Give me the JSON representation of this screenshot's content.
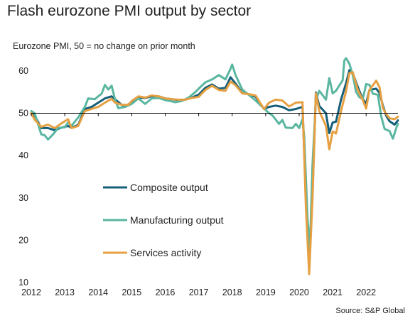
{
  "title": "Flash eurozone PMI output by sector",
  "subtitle": "Eurozone PMI, 50 = no change on prior month",
  "source": "Source: S&P Global",
  "chart_data": {
    "type": "line",
    "ylim": [
      10,
      63
    ],
    "yticks": [
      10,
      20,
      30,
      40,
      50,
      60
    ],
    "xlim": [
      2012.0,
      2022.95
    ],
    "xticks": [
      2012,
      2013,
      2014,
      2015,
      2016,
      2017,
      2018,
      2019,
      2020,
      2021,
      2022
    ],
    "reference_line": 50,
    "grid": false,
    "legend_position": "middle-left",
    "series": [
      {
        "name": "Composite output",
        "color": "#155f7a",
        "points": [
          [
            2012.0,
            50.0
          ],
          [
            2012.1,
            49.5
          ],
          [
            2012.3,
            46.5
          ],
          [
            2012.5,
            46.5
          ],
          [
            2012.7,
            46.0
          ],
          [
            2012.9,
            46.6
          ],
          [
            2013.1,
            47.0
          ],
          [
            2013.2,
            46.6
          ],
          [
            2013.4,
            47.2
          ],
          [
            2013.6,
            51.0
          ],
          [
            2013.8,
            51.5
          ],
          [
            2014.0,
            52.5
          ],
          [
            2014.2,
            53.5
          ],
          [
            2014.4,
            54.0
          ],
          [
            2014.5,
            53.3
          ],
          [
            2014.7,
            52.0
          ],
          [
            2014.8,
            51.6
          ],
          [
            2015.0,
            52.6
          ],
          [
            2015.2,
            53.7
          ],
          [
            2015.4,
            53.6
          ],
          [
            2015.6,
            54.0
          ],
          [
            2015.8,
            54.0
          ],
          [
            2016.0,
            53.5
          ],
          [
            2016.2,
            53.3
          ],
          [
            2016.4,
            53.1
          ],
          [
            2016.6,
            53.2
          ],
          [
            2016.8,
            53.7
          ],
          [
            2017.0,
            54.4
          ],
          [
            2017.2,
            56.0
          ],
          [
            2017.4,
            56.8
          ],
          [
            2017.6,
            55.8
          ],
          [
            2017.8,
            56.0
          ],
          [
            2017.95,
            58.5
          ],
          [
            2018.1,
            57.0
          ],
          [
            2018.3,
            54.8
          ],
          [
            2018.5,
            54.5
          ],
          [
            2018.7,
            53.9
          ],
          [
            2018.95,
            51.0
          ],
          [
            2019.1,
            51.5
          ],
          [
            2019.3,
            51.8
          ],
          [
            2019.5,
            51.5
          ],
          [
            2019.7,
            50.7
          ],
          [
            2019.9,
            51.0
          ],
          [
            2020.1,
            51.5
          ],
          [
            2020.2,
            31.0
          ],
          [
            2020.3,
            13.5
          ],
          [
            2020.4,
            31.0
          ],
          [
            2020.5,
            54.9
          ],
          [
            2020.6,
            51.7
          ],
          [
            2020.8,
            50.0
          ],
          [
            2020.9,
            45.3
          ],
          [
            2021.0,
            47.8
          ],
          [
            2021.1,
            48.0
          ],
          [
            2021.25,
            53.2
          ],
          [
            2021.4,
            57.1
          ],
          [
            2021.5,
            60.2
          ],
          [
            2021.6,
            59.5
          ],
          [
            2021.75,
            56.2
          ],
          [
            2021.9,
            53.3
          ],
          [
            2022.0,
            52.3
          ],
          [
            2022.1,
            55.5
          ],
          [
            2022.3,
            55.8
          ],
          [
            2022.4,
            54.8
          ],
          [
            2022.5,
            51.8
          ],
          [
            2022.6,
            49.4
          ],
          [
            2022.7,
            48.1
          ],
          [
            2022.85,
            47.3
          ],
          [
            2022.95,
            48.3
          ]
        ]
      },
      {
        "name": "Manufacturing output",
        "color": "#5ab6a0",
        "points": [
          [
            2012.0,
            50.5
          ],
          [
            2012.1,
            50.0
          ],
          [
            2012.3,
            45.0
          ],
          [
            2012.4,
            44.8
          ],
          [
            2012.5,
            43.8
          ],
          [
            2012.65,
            45.0
          ],
          [
            2012.8,
            46.5
          ],
          [
            2013.0,
            46.7
          ],
          [
            2013.1,
            47.8
          ],
          [
            2013.2,
            47.0
          ],
          [
            2013.4,
            49.0
          ],
          [
            2013.6,
            51.5
          ],
          [
            2013.7,
            53.5
          ],
          [
            2013.9,
            53.3
          ],
          [
            2014.0,
            54.0
          ],
          [
            2014.1,
            54.6
          ],
          [
            2014.2,
            56.7
          ],
          [
            2014.3,
            55.6
          ],
          [
            2014.4,
            56.5
          ],
          [
            2014.5,
            53.3
          ],
          [
            2014.6,
            51.2
          ],
          [
            2014.8,
            51.5
          ],
          [
            2015.0,
            52.2
          ],
          [
            2015.2,
            53.5
          ],
          [
            2015.4,
            52.2
          ],
          [
            2015.6,
            53.5
          ],
          [
            2015.8,
            53.6
          ],
          [
            2016.0,
            53.1
          ],
          [
            2016.2,
            52.8
          ],
          [
            2016.3,
            52.6
          ],
          [
            2016.5,
            52.9
          ],
          [
            2016.7,
            53.7
          ],
          [
            2016.9,
            55.0
          ],
          [
            2017.0,
            55.8
          ],
          [
            2017.2,
            57.3
          ],
          [
            2017.4,
            58.0
          ],
          [
            2017.6,
            59.0
          ],
          [
            2017.8,
            58.0
          ],
          [
            2017.95,
            60.5
          ],
          [
            2018.0,
            61.5
          ],
          [
            2018.1,
            59.0
          ],
          [
            2018.3,
            55.6
          ],
          [
            2018.5,
            54.3
          ],
          [
            2018.7,
            53.0
          ],
          [
            2018.9,
            51.5
          ],
          [
            2019.1,
            50.0
          ],
          [
            2019.2,
            49.5
          ],
          [
            2019.4,
            47.5
          ],
          [
            2019.5,
            48.4
          ],
          [
            2019.6,
            46.6
          ],
          [
            2019.8,
            46.5
          ],
          [
            2019.9,
            47.5
          ],
          [
            2020.0,
            46.5
          ],
          [
            2020.1,
            48.6
          ],
          [
            2020.15,
            44.5
          ],
          [
            2020.25,
            25.0
          ],
          [
            2020.32,
            18.0
          ],
          [
            2020.4,
            38.0
          ],
          [
            2020.5,
            53.0
          ],
          [
            2020.6,
            55.3
          ],
          [
            2020.8,
            53.2
          ],
          [
            2020.9,
            58.3
          ],
          [
            2021.0,
            54.7
          ],
          [
            2021.1,
            55.3
          ],
          [
            2021.3,
            57.8
          ],
          [
            2021.35,
            62.5
          ],
          [
            2021.4,
            63.0
          ],
          [
            2021.5,
            61.7
          ],
          [
            2021.6,
            59.0
          ],
          [
            2021.7,
            55.0
          ],
          [
            2021.8,
            53.8
          ],
          [
            2021.9,
            53.3
          ],
          [
            2022.0,
            56.9
          ],
          [
            2022.1,
            56.7
          ],
          [
            2022.2,
            54.6
          ],
          [
            2022.35,
            54.4
          ],
          [
            2022.45,
            49.3
          ],
          [
            2022.55,
            46.3
          ],
          [
            2022.7,
            45.8
          ],
          [
            2022.8,
            44.0
          ],
          [
            2022.9,
            46.5
          ],
          [
            2022.95,
            47.5
          ]
        ]
      },
      {
        "name": "Services activity",
        "color": "#e6a042",
        "points": [
          [
            2012.0,
            50.0
          ],
          [
            2012.1,
            48.5
          ],
          [
            2012.3,
            46.8
          ],
          [
            2012.5,
            47.3
          ],
          [
            2012.7,
            46.5
          ],
          [
            2012.9,
            47.6
          ],
          [
            2013.1,
            48.6
          ],
          [
            2013.2,
            46.5
          ],
          [
            2013.4,
            47.0
          ],
          [
            2013.6,
            50.5
          ],
          [
            2013.8,
            51.0
          ],
          [
            2014.0,
            51.5
          ],
          [
            2014.2,
            52.5
          ],
          [
            2014.4,
            53.4
          ],
          [
            2014.5,
            52.5
          ],
          [
            2014.7,
            52.0
          ],
          [
            2014.9,
            52.0
          ],
          [
            2015.0,
            52.9
          ],
          [
            2015.2,
            54.0
          ],
          [
            2015.4,
            53.7
          ],
          [
            2015.6,
            54.2
          ],
          [
            2015.8,
            54.0
          ],
          [
            2016.0,
            53.5
          ],
          [
            2016.2,
            53.3
          ],
          [
            2016.4,
            53.2
          ],
          [
            2016.6,
            53.2
          ],
          [
            2016.8,
            53.6
          ],
          [
            2017.0,
            53.9
          ],
          [
            2017.2,
            55.5
          ],
          [
            2017.4,
            56.5
          ],
          [
            2017.6,
            55.5
          ],
          [
            2017.8,
            55.3
          ],
          [
            2017.95,
            57.5
          ],
          [
            2018.1,
            56.6
          ],
          [
            2018.3,
            54.7
          ],
          [
            2018.5,
            54.5
          ],
          [
            2018.7,
            54.2
          ],
          [
            2018.95,
            51.0
          ],
          [
            2019.1,
            52.5
          ],
          [
            2019.3,
            53.2
          ],
          [
            2019.5,
            53.0
          ],
          [
            2019.7,
            51.6
          ],
          [
            2019.9,
            52.5
          ],
          [
            2020.1,
            52.6
          ],
          [
            2020.2,
            28.0
          ],
          [
            2020.3,
            12.0
          ],
          [
            2020.4,
            30.0
          ],
          [
            2020.5,
            54.7
          ],
          [
            2020.6,
            50.5
          ],
          [
            2020.8,
            47.0
          ],
          [
            2020.9,
            41.5
          ],
          [
            2021.0,
            45.7
          ],
          [
            2021.1,
            45.2
          ],
          [
            2021.25,
            50.5
          ],
          [
            2021.4,
            55.2
          ],
          [
            2021.5,
            59.5
          ],
          [
            2021.6,
            59.7
          ],
          [
            2021.75,
            55.5
          ],
          [
            2021.9,
            53.1
          ],
          [
            2022.0,
            51.1
          ],
          [
            2022.1,
            55.5
          ],
          [
            2022.3,
            57.7
          ],
          [
            2022.4,
            56.1
          ],
          [
            2022.5,
            51.2
          ],
          [
            2022.6,
            49.8
          ],
          [
            2022.7,
            48.8
          ],
          [
            2022.85,
            48.6
          ],
          [
            2022.95,
            49.2
          ]
        ]
      }
    ]
  }
}
